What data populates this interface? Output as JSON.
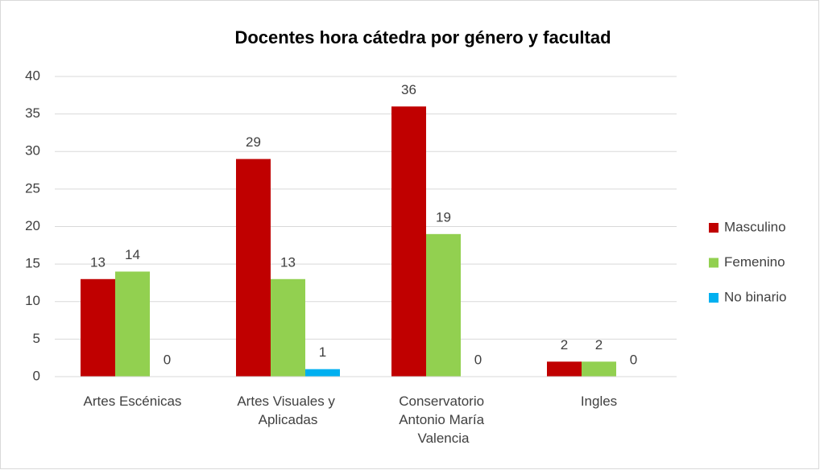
{
  "chart_data": {
    "type": "bar",
    "title": "Docentes hora cátedra por género y facultad",
    "categories": [
      "Artes Escénicas",
      "Artes Visuales y Aplicadas",
      "Conservatorio Antonio María Valencia",
      "Ingles"
    ],
    "series": [
      {
        "name": "Masculino",
        "color": "#c00000",
        "values": [
          13,
          29,
          36,
          2
        ]
      },
      {
        "name": "Femenino",
        "color": "#92d050",
        "values": [
          14,
          13,
          19,
          2
        ]
      },
      {
        "name": "No binario",
        "color": "#00b0f0",
        "values": [
          0,
          1,
          0,
          0
        ]
      }
    ],
    "ylim": [
      0,
      40
    ],
    "yticks": [
      0,
      5,
      10,
      15,
      20,
      25,
      30,
      35,
      40
    ],
    "grid": true,
    "legend": "right"
  }
}
